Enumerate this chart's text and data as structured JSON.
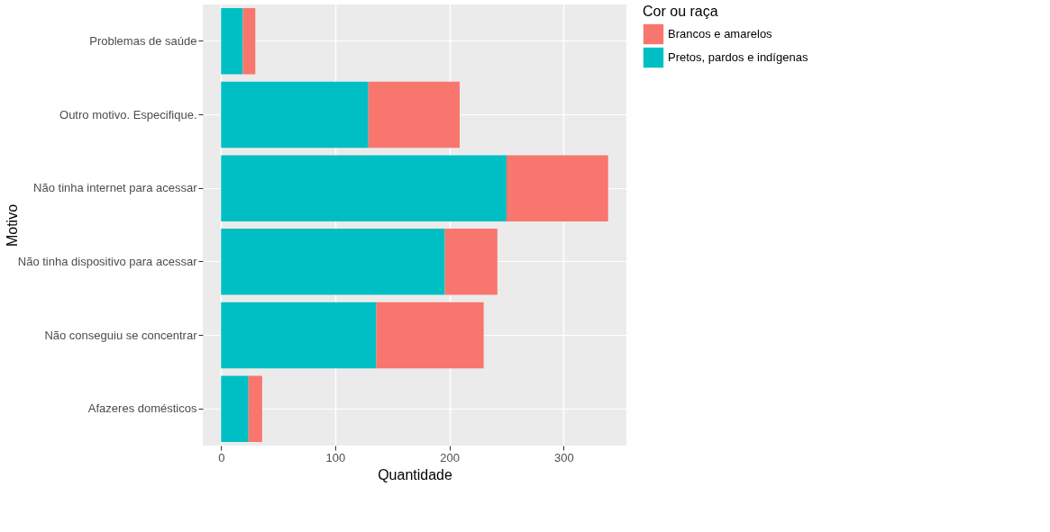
{
  "chart_data": {
    "type": "bar",
    "orientation": "horizontal",
    "stacked": true,
    "xlabel": "Quantidade",
    "ylabel": "Motivo",
    "legend_title": "Cor ou raça",
    "legend": "right",
    "grid": true,
    "categories": [
      "Problemas de saúde",
      "Outro motivo. Especifique.",
      "Não tinha internet para acessar",
      "Não tinha dispositivo para acessar",
      "Não conseguiu se concentrar",
      "Afazeres domésticos"
    ],
    "series": [
      {
        "name": "Pretos, pardos e indígenas",
        "color": "#00bfc4",
        "values": [
          19,
          129,
          250,
          196,
          136,
          24
        ]
      },
      {
        "name": "Brancos e amarelos",
        "color": "#f8766d",
        "values": [
          11,
          80,
          89,
          46,
          94,
          12
        ]
      }
    ],
    "xlim": [
      -16,
      355
    ],
    "xticks": [
      0,
      100,
      200,
      300
    ]
  }
}
